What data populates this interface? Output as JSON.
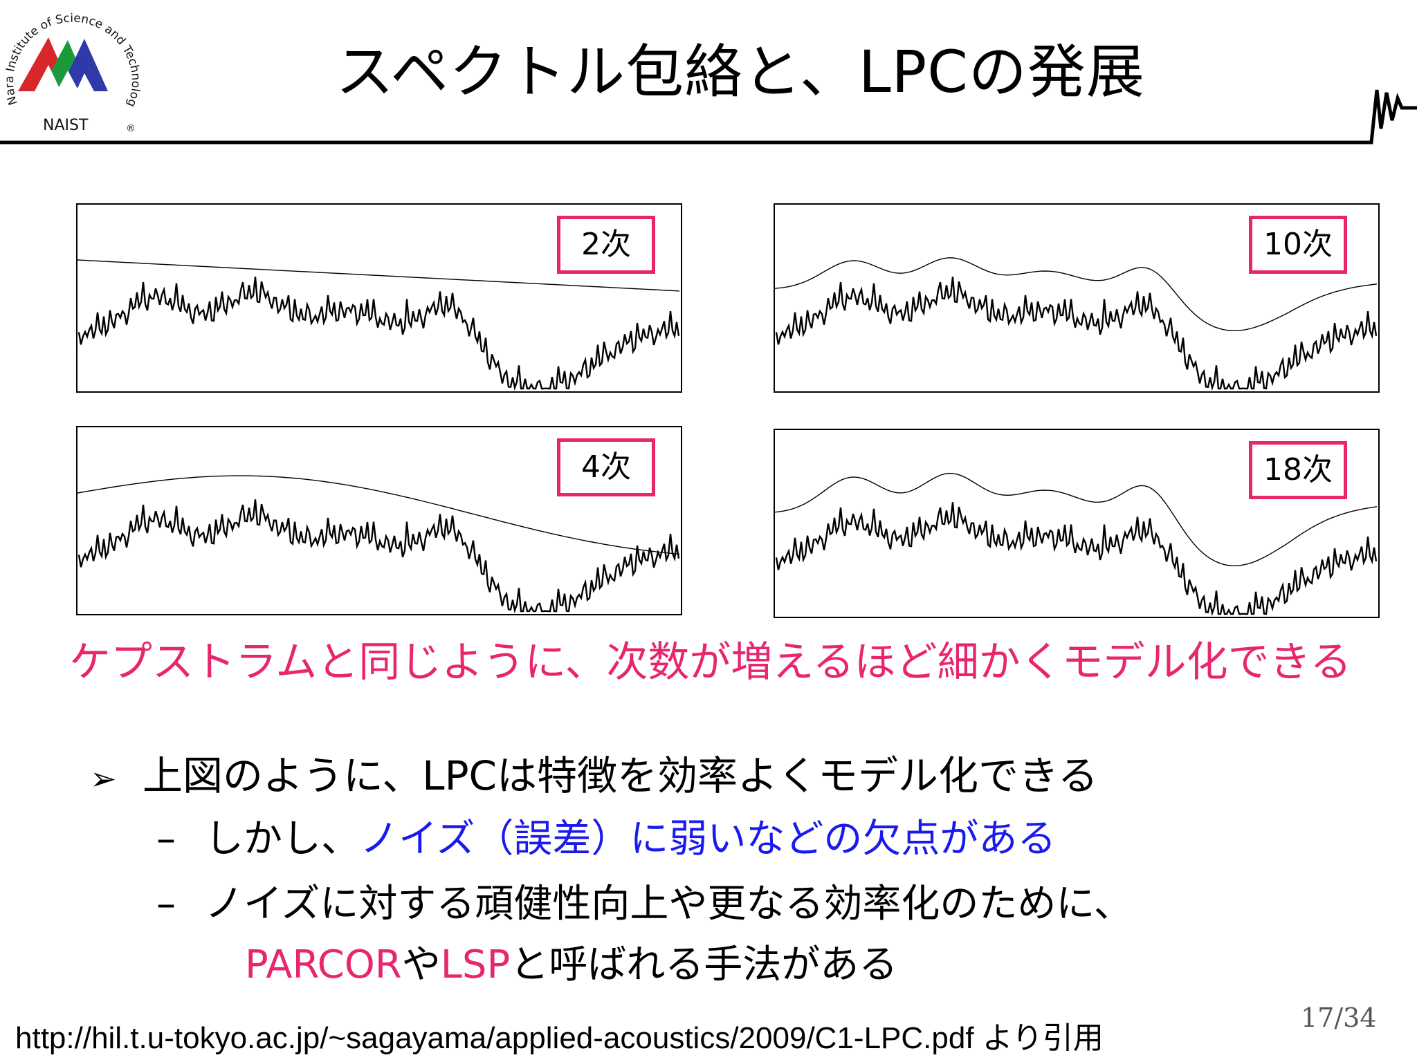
{
  "logo": {
    "arc_text": "Nara Institute of Science and Technology",
    "wordmark": "NAIST",
    "registered": "®"
  },
  "slide": {
    "title": "スペクトル包絡と、LPCの発展",
    "page_current": "17",
    "page_total": "34"
  },
  "figure": {
    "panels": [
      {
        "order_label": "2次",
        "smoothness": 2
      },
      {
        "order_label": "10次",
        "smoothness": 10
      },
      {
        "order_label": "4次",
        "smoothness": 4
      },
      {
        "order_label": "18次",
        "smoothness": 18
      }
    ],
    "caption": "ケプストラムと同じように、次数が増えるほど細かくモデル化できる"
  },
  "bullets": {
    "main": "上図のように、LPCは特徴を効率よくモデル化できる",
    "sub1_plain": "しかし、",
    "sub1_highlight": "ノイズ（誤差）に弱いなどの欠点がある",
    "sub2": "ノイズに対する頑健性向上や更なる効率化のために、",
    "sub2_cont_term1": "PARCOR",
    "sub2_cont_mid": "や",
    "sub2_cont_term2": "LSP",
    "sub2_cont_rest": "と呼ばれる手法がある"
  },
  "source": "http://hil.t.u-tokyo.ac.jp/~sagayama/applied-acoustics/2009/C1-LPC.pdf より引用",
  "colors": {
    "accent_pink": "#e8266e",
    "highlight_blue": "#1a1aee",
    "logo_red": "#d9262b",
    "logo_green": "#1a9a3a",
    "logo_blue": "#2f3aa8"
  }
}
